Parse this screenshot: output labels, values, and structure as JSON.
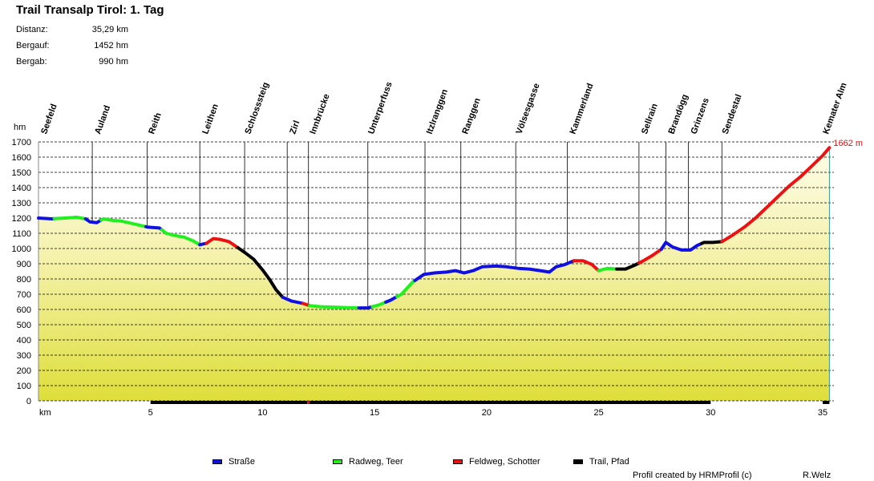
{
  "title": "Trail Transalp Tirol: 1. Tag",
  "stats": [
    {
      "label": "Distanz:",
      "value": "35,29 km"
    },
    {
      "label": "Bergauf:",
      "value": "1452 hm"
    },
    {
      "label": "Bergab:",
      "value": "990 hm"
    }
  ],
  "legend": [
    {
      "label": "Straße",
      "color": "#1010e0"
    },
    {
      "label": "Radweg, Teer",
      "color": "#22ee22"
    },
    {
      "label": "Feldweg, Schotter",
      "color": "#ee1111"
    },
    {
      "label": "Trail, Pfad",
      "color": "#000000"
    }
  ],
  "footer": {
    "credit": "Profil created by HRMProfil (c)",
    "author": "R.Welz"
  },
  "chart_data": {
    "type": "area",
    "xlabel": "km",
    "ylabel": "hm",
    "xlim": [
      0,
      35.5
    ],
    "ylim": [
      0,
      1700
    ],
    "x_ticks": [
      5,
      10,
      15,
      20,
      25,
      30,
      35
    ],
    "y_ticks": [
      0,
      100,
      200,
      300,
      400,
      500,
      600,
      700,
      800,
      900,
      1000,
      1100,
      1200,
      1300,
      1400,
      1500,
      1600,
      1700
    ],
    "grid": true,
    "end_annotation": "1662 m",
    "waypoints": [
      {
        "name": "Seefeld",
        "km": 0.0,
        "label_km": 0.2
      },
      {
        "name": "Auland",
        "km": 2.4,
        "label_km": 2.6
      },
      {
        "name": "Reith",
        "km": 4.85,
        "label_km": 5.0
      },
      {
        "name": "Leithen",
        "km": 7.2,
        "label_km": 7.4
      },
      {
        "name": "Schlosssteig",
        "km": 9.2,
        "label_km": 9.3
      },
      {
        "name": "Zirl",
        "km": 11.1,
        "label_km": 11.3
      },
      {
        "name": "Innbrücke",
        "km": 12.05,
        "label_km": 12.2
      },
      {
        "name": "Unterperfuss",
        "km": 14.7,
        "label_km": 14.8
      },
      {
        "name": "Itzlranggen",
        "km": 17.25,
        "label_km": 17.4
      },
      {
        "name": "Ranggen",
        "km": 18.85,
        "label_km": 19.0
      },
      {
        "name": "Völsesgasse",
        "km": 21.3,
        "label_km": 21.4
      },
      {
        "name": "Kammerland",
        "km": 23.6,
        "label_km": 23.8
      },
      {
        "name": "Sellrain",
        "km": 26.8,
        "label_km": 27.0
      },
      {
        "name": "Brandögg",
        "km": 28.0,
        "label_km": 28.2
      },
      {
        "name": "Grinzens",
        "km": 29.0,
        "label_km": 29.2
      },
      {
        "name": "Sendestal",
        "km": 30.5,
        "label_km": 30.6
      },
      {
        "name": "Kemater Alm",
        "km": 35.3,
        "label_km": 35.1
      }
    ],
    "profile": [
      [
        0,
        1200
      ],
      [
        0.6,
        1195
      ],
      [
        1.2,
        1200
      ],
      [
        1.7,
        1205
      ],
      [
        2.1,
        1195
      ],
      [
        2.3,
        1175
      ],
      [
        2.6,
        1170
      ],
      [
        2.9,
        1195
      ],
      [
        3.3,
        1185
      ],
      [
        3.7,
        1180
      ],
      [
        4.3,
        1160
      ],
      [
        4.9,
        1140
      ],
      [
        5.4,
        1135
      ],
      [
        5.7,
        1100
      ],
      [
        6.1,
        1085
      ],
      [
        6.5,
        1075
      ],
      [
        6.9,
        1050
      ],
      [
        7.2,
        1025
      ],
      [
        7.5,
        1035
      ],
      [
        7.8,
        1065
      ],
      [
        8.1,
        1060
      ],
      [
        8.5,
        1045
      ],
      [
        8.9,
        1005
      ],
      [
        9.2,
        975
      ],
      [
        9.6,
        930
      ],
      [
        10.0,
        860
      ],
      [
        10.3,
        800
      ],
      [
        10.6,
        730
      ],
      [
        10.9,
        680
      ],
      [
        11.3,
        655
      ],
      [
        11.8,
        640
      ],
      [
        12.1,
        625
      ],
      [
        12.6,
        618
      ],
      [
        13.2,
        615
      ],
      [
        13.8,
        612
      ],
      [
        14.3,
        610
      ],
      [
        14.7,
        610
      ],
      [
        15.2,
        630
      ],
      [
        15.7,
        660
      ],
      [
        16.2,
        700
      ],
      [
        16.7,
        780
      ],
      [
        17.2,
        830
      ],
      [
        17.7,
        840
      ],
      [
        18.2,
        845
      ],
      [
        18.6,
        855
      ],
      [
        19.0,
        840
      ],
      [
        19.4,
        855
      ],
      [
        19.8,
        880
      ],
      [
        20.4,
        885
      ],
      [
        20.9,
        880
      ],
      [
        21.4,
        870
      ],
      [
        21.9,
        865
      ],
      [
        22.4,
        855
      ],
      [
        22.8,
        845
      ],
      [
        23.1,
        880
      ],
      [
        23.5,
        895
      ],
      [
        23.9,
        920
      ],
      [
        24.3,
        920
      ],
      [
        24.7,
        895
      ],
      [
        25.0,
        855
      ],
      [
        25.4,
        870
      ],
      [
        25.8,
        865
      ],
      [
        26.2,
        865
      ],
      [
        26.6,
        890
      ],
      [
        27.0,
        920
      ],
      [
        27.4,
        955
      ],
      [
        27.8,
        995
      ],
      [
        28.0,
        1040
      ],
      [
        28.3,
        1010
      ],
      [
        28.7,
        990
      ],
      [
        29.1,
        990
      ],
      [
        29.4,
        1020
      ],
      [
        29.7,
        1040
      ],
      [
        30.1,
        1040
      ],
      [
        30.5,
        1045
      ],
      [
        31.0,
        1090
      ],
      [
        31.5,
        1140
      ],
      [
        32.0,
        1200
      ],
      [
        32.5,
        1270
      ],
      [
        33.0,
        1340
      ],
      [
        33.5,
        1410
      ],
      [
        34.0,
        1470
      ],
      [
        34.5,
        1540
      ],
      [
        35.0,
        1610
      ],
      [
        35.3,
        1662
      ]
    ],
    "surface_segments": [
      {
        "from_km": 0.0,
        "to_km": 0.7,
        "type": "Straße"
      },
      {
        "from_km": 0.7,
        "to_km": 2.1,
        "type": "Radweg, Teer"
      },
      {
        "from_km": 2.1,
        "to_km": 2.8,
        "type": "Straße"
      },
      {
        "from_km": 2.8,
        "to_km": 4.8,
        "type": "Radweg, Teer"
      },
      {
        "from_km": 4.8,
        "to_km": 5.5,
        "type": "Straße"
      },
      {
        "from_km": 5.5,
        "to_km": 7.2,
        "type": "Radweg, Teer"
      },
      {
        "from_km": 7.2,
        "to_km": 7.5,
        "type": "Straße"
      },
      {
        "from_km": 7.5,
        "to_km": 8.9,
        "type": "Feldweg, Schotter"
      },
      {
        "from_km": 8.9,
        "to_km": 10.9,
        "type": "Trail, Pfad"
      },
      {
        "from_km": 10.9,
        "to_km": 11.8,
        "type": "Straße"
      },
      {
        "from_km": 11.8,
        "to_km": 12.1,
        "type": "Feldweg, Schotter"
      },
      {
        "from_km": 12.1,
        "to_km": 14.3,
        "type": "Radweg, Teer"
      },
      {
        "from_km": 14.3,
        "to_km": 14.9,
        "type": "Straße"
      },
      {
        "from_km": 14.9,
        "to_km": 15.5,
        "type": "Radweg, Teer"
      },
      {
        "from_km": 15.5,
        "to_km": 16.0,
        "type": "Straße"
      },
      {
        "from_km": 16.0,
        "to_km": 16.8,
        "type": "Radweg, Teer"
      },
      {
        "from_km": 16.8,
        "to_km": 23.9,
        "type": "Straße"
      },
      {
        "from_km": 23.9,
        "to_km": 25.0,
        "type": "Feldweg, Schotter"
      },
      {
        "from_km": 25.0,
        "to_km": 25.8,
        "type": "Radweg, Teer"
      },
      {
        "from_km": 25.8,
        "to_km": 26.8,
        "type": "Trail, Pfad"
      },
      {
        "from_km": 26.8,
        "to_km": 27.8,
        "type": "Feldweg, Schotter"
      },
      {
        "from_km": 27.8,
        "to_km": 29.6,
        "type": "Straße"
      },
      {
        "from_km": 29.6,
        "to_km": 30.5,
        "type": "Trail, Pfad"
      },
      {
        "from_km": 30.5,
        "to_km": 35.3,
        "type": "Feldweg, Schotter"
      }
    ],
    "bottom_bar": [
      {
        "from_km": 5.0,
        "to_km": 12.0
      },
      {
        "from_km": 12.0,
        "to_km": 12.1,
        "gap": true
      },
      {
        "from_km": 12.1,
        "to_km": 30.0
      },
      {
        "from_km": 35.0,
        "to_km": 35.3
      }
    ]
  }
}
